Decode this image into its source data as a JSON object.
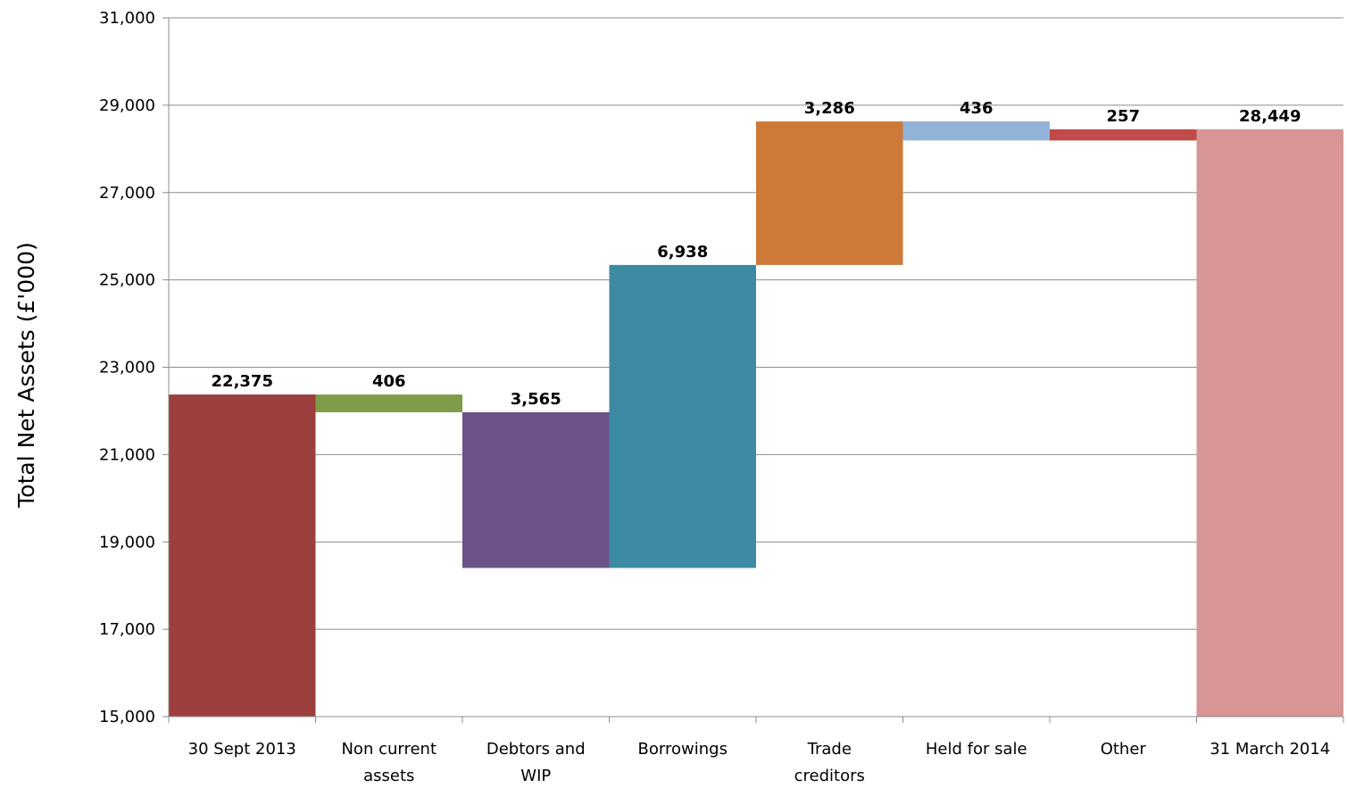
{
  "chart_data": {
    "type": "bar",
    "subtype": "waterfall",
    "title": "",
    "xlabel": "",
    "ylabel": "Total Net Assets (£'000)",
    "ylim": [
      15000,
      31000
    ],
    "yticks": [
      15000,
      17000,
      19000,
      21000,
      23000,
      25000,
      27000,
      29000,
      31000
    ],
    "ytick_labels": [
      "15,000",
      "17,000",
      "19,000",
      "21,000",
      "23,000",
      "25,000",
      "27,000",
      "29,000",
      "31,000"
    ],
    "grid": true,
    "legend": "none",
    "categories": [
      [
        "30 Sept 2013"
      ],
      [
        "Non current",
        "assets"
      ],
      [
        "Debtors and",
        "WIP"
      ],
      [
        "Borrowings"
      ],
      [
        "Trade",
        "creditors"
      ],
      [
        "Held for sale"
      ],
      [
        "Other"
      ],
      [
        "31 March 2014"
      ]
    ],
    "bars": [
      {
        "start": 15000,
        "end": 22375,
        "label": "22,375",
        "color": "#9c3f3e"
      },
      {
        "start": 22375,
        "end": 21969,
        "label": "406",
        "color": "#7f9c48"
      },
      {
        "start": 21969,
        "end": 18404,
        "label": "3,565",
        "color": "#6b5287"
      },
      {
        "start": 18404,
        "end": 25342,
        "label": "6,938",
        "color": "#3c8ba2"
      },
      {
        "start": 25342,
        "end": 28628,
        "label": "3,286",
        "color": "#cd7a38"
      },
      {
        "start": 28628,
        "end": 28192,
        "label": "436",
        "color": "#93b2d7"
      },
      {
        "start": 28192,
        "end": 28449,
        "label": "257",
        "color": "#c04b4a"
      },
      {
        "start": 15000,
        "end": 28449,
        "label": "28,449",
        "color": "#d89595"
      }
    ]
  }
}
